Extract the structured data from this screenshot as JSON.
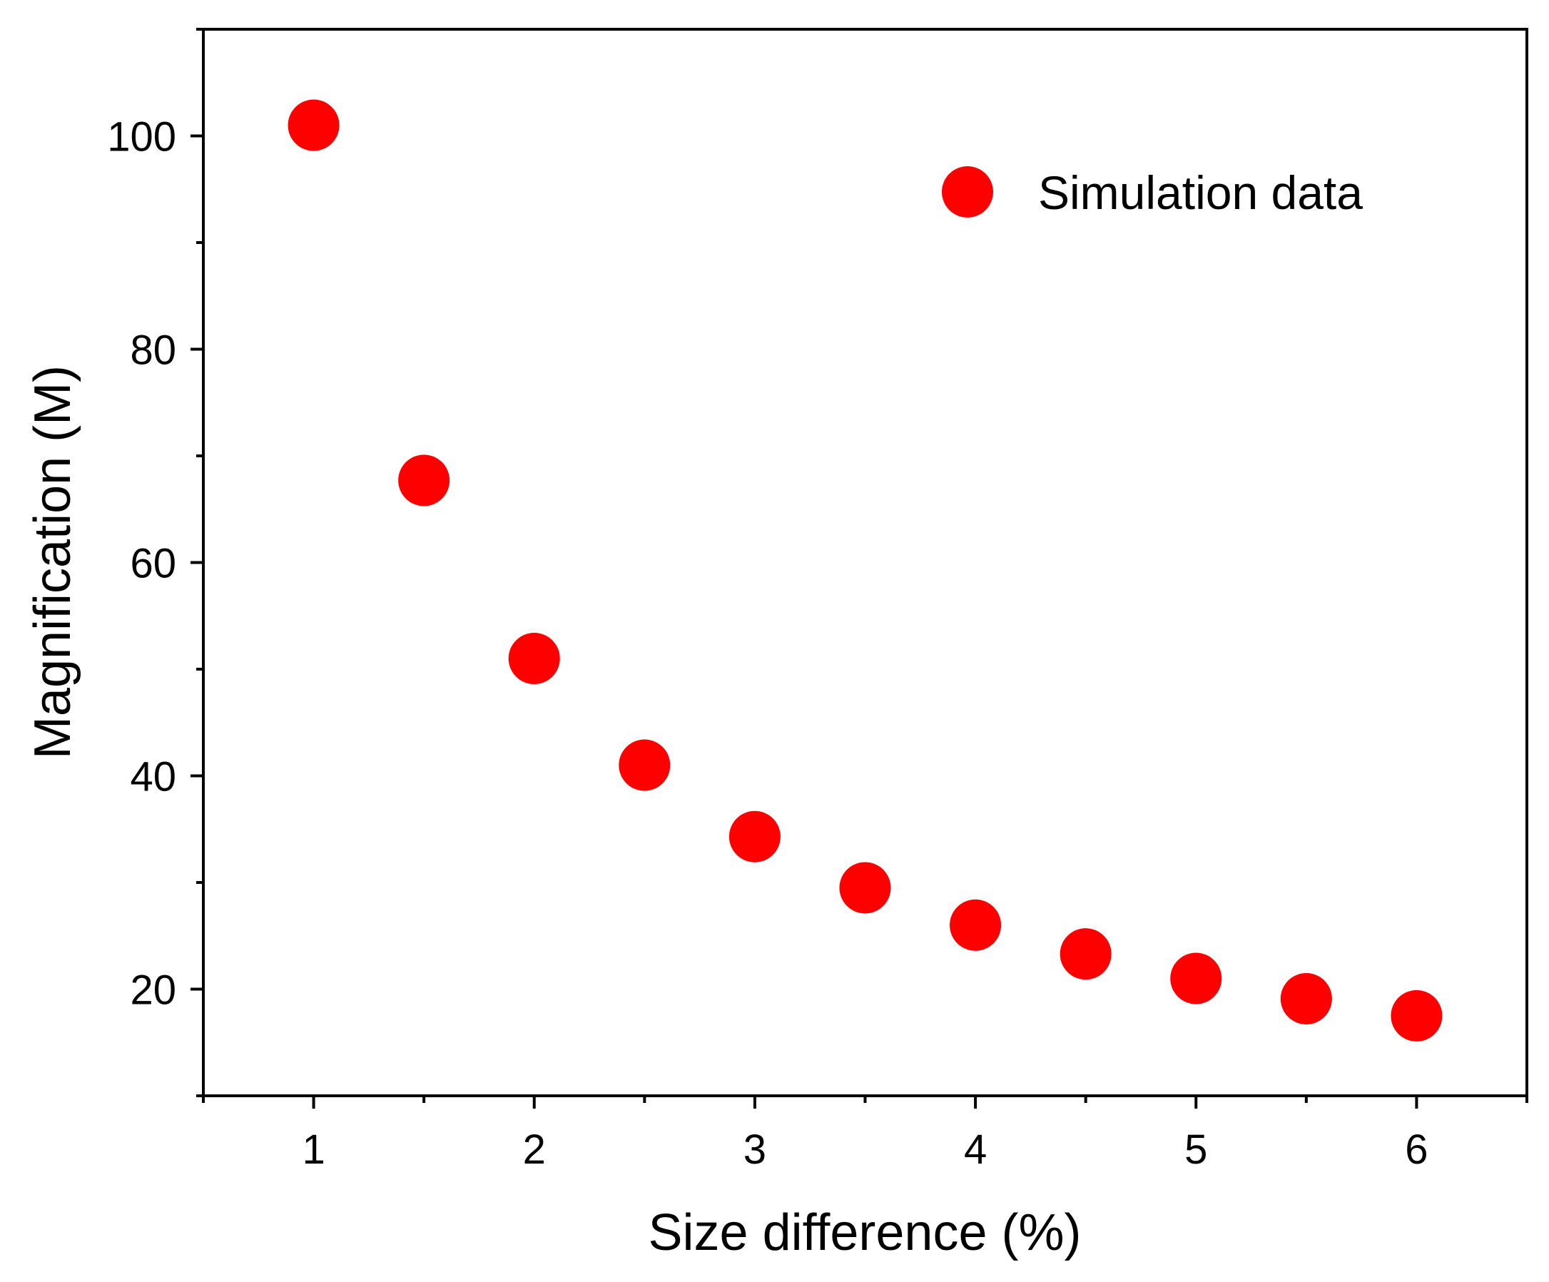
{
  "chart_data": {
    "type": "scatter",
    "title": "",
    "xlabel": "Size difference (%)",
    "ylabel": "Magnification (M)",
    "xlim": [
      0.5,
      6.5
    ],
    "ylim": [
      10,
      110
    ],
    "x_ticks": [
      1,
      2,
      3,
      4,
      5,
      6
    ],
    "x_minor_ticks": [
      1.5,
      2.5,
      3.5,
      4.5,
      5.5
    ],
    "y_ticks": [
      20,
      40,
      60,
      80,
      100
    ],
    "y_minor_ticks": [
      30,
      50,
      70,
      90
    ],
    "grid": false,
    "legend_position": "top-right",
    "series": [
      {
        "name": "Simulation data",
        "color": "#ff0000",
        "marker": "circle",
        "x": [
          1,
          1.5,
          2,
          2.5,
          3,
          3.5,
          4,
          4.5,
          5,
          5.5,
          6
        ],
        "y": [
          101,
          67.7,
          51,
          41,
          34.3,
          29.5,
          26,
          23.3,
          21,
          19.1,
          17.5
        ]
      }
    ]
  }
}
